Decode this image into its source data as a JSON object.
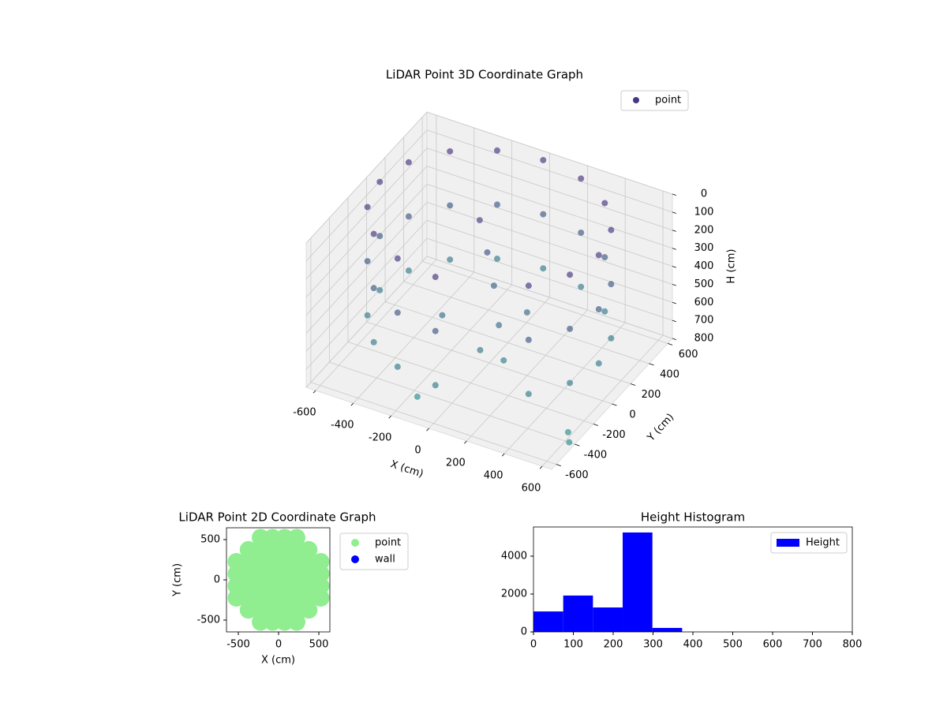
{
  "chart_data": [
    {
      "type": "scatter3d",
      "title": "LiDAR Point 3D Coordinate Graph",
      "xlabel": "X (cm)",
      "ylabel": "Y (cm)",
      "zlabel": "H (cm)",
      "xlim": [
        -650,
        650
      ],
      "ylim": [
        -650,
        650
      ],
      "zlim": [
        800,
        0
      ],
      "xticks": [
        -600,
        -400,
        -200,
        0,
        200,
        400,
        600
      ],
      "yticks": [
        -600,
        -400,
        -200,
        0,
        200,
        400,
        600
      ],
      "zticks": [
        0,
        100,
        200,
        300,
        400,
        500,
        600,
        700,
        800
      ],
      "grid": true,
      "legend": "upper right",
      "series": [
        {
          "name": "point",
          "color": "#443983",
          "colormap": [
            "#46337e",
            "#2a8f8c"
          ],
          "x": [
            580,
            580,
            580,
            536,
            536,
            536,
            410,
            410,
            410,
            222,
            222,
            222,
            0,
            0,
            0,
            -222,
            -222,
            -222,
            -410,
            -410,
            -410,
            -536,
            -536,
            -536,
            -580,
            -580,
            -580,
            -536,
            -536,
            -536,
            -410,
            -410,
            -410,
            -222,
            -222,
            -222,
            0,
            0,
            0,
            410,
            410,
            410,
            536,
            536,
            536,
            -100,
            -50,
            0,
            100,
            50,
            150,
            200,
            -200,
            -165,
            578,
            620
          ],
          "y": [
            0,
            0,
            0,
            222,
            222,
            222,
            410,
            410,
            410,
            536,
            536,
            536,
            580,
            580,
            580,
            536,
            536,
            536,
            410,
            410,
            410,
            222,
            222,
            222,
            0,
            0,
            0,
            -222,
            -222,
            -222,
            -410,
            -410,
            -410,
            -536,
            -536,
            -536,
            -580,
            -580,
            -580,
            -410,
            -410,
            -410,
            -222,
            -222,
            -222,
            100,
            80,
            50,
            -100,
            -200,
            -150,
            0,
            -100,
            -439,
            -326,
            -400
          ],
          "z": [
            0,
            300,
            600,
            0,
            300,
            600,
            0,
            300,
            600,
            0,
            300,
            600,
            0,
            300,
            600,
            0,
            300,
            600,
            0,
            300,
            600,
            0,
            300,
            600,
            0,
            300,
            600,
            0,
            300,
            600,
            0,
            300,
            600,
            0,
            300,
            600,
            0,
            300,
            600,
            0,
            300,
            600,
            0,
            300,
            600,
            100,
            250,
            400,
            500,
            600,
            650,
            450,
            550,
            800,
            800,
            800
          ]
        }
      ]
    },
    {
      "type": "scatter",
      "title": "LiDAR Point 2D Coordinate Graph",
      "xlabel": "X (cm)",
      "ylabel": "Y (cm)",
      "xlim": [
        -647,
        637
      ],
      "ylim": [
        -647,
        647
      ],
      "xticks": [
        -500,
        0,
        500
      ],
      "yticks": [
        -500,
        0,
        500
      ],
      "legend": "outside right",
      "series": [
        {
          "name": "point",
          "color": "#90ee90",
          "x": [
            -525,
            -525,
            -525,
            -525,
            -375,
            -375,
            -375,
            -375,
            -375,
            -375,
            -225,
            -225,
            -225,
            -225,
            -225,
            -225,
            -225,
            -225,
            -75,
            -75,
            -75,
            -75,
            -75,
            -75,
            -75,
            -75,
            75,
            75,
            75,
            75,
            75,
            75,
            75,
            75,
            225,
            225,
            225,
            225,
            225,
            225,
            225,
            225,
            375,
            375,
            375,
            375,
            375,
            375,
            525,
            525,
            525,
            525
          ],
          "y": [
            -225,
            -75,
            75,
            225,
            -375,
            -225,
            -75,
            75,
            225,
            375,
            -525,
            -375,
            -225,
            -75,
            75,
            225,
            375,
            525,
            -525,
            -375,
            -225,
            -75,
            75,
            225,
            375,
            525,
            -525,
            -375,
            -225,
            -75,
            75,
            225,
            375,
            525,
            -525,
            -375,
            -225,
            -75,
            75,
            225,
            375,
            525,
            -375,
            -225,
            -75,
            75,
            225,
            375,
            -225,
            -75,
            75,
            225
          ]
        },
        {
          "name": "wall",
          "color": "#0000ff",
          "x": [],
          "y": []
        }
      ]
    },
    {
      "type": "histogram",
      "title": "Height Histogram",
      "bins": [
        0,
        74.6,
        149.2,
        223.8,
        298.4,
        373,
        447.6,
        522.2,
        596.8,
        671.4,
        746
      ],
      "xlim": [
        0,
        800
      ],
      "ylim": [
        0,
        5540
      ],
      "xticks": [
        0,
        100,
        200,
        300,
        400,
        500,
        600,
        700,
        800
      ],
      "yticks": [
        0,
        2000,
        4000
      ],
      "legend": "upper right",
      "series": [
        {
          "name": "Height",
          "color": "#0000ff",
          "values": [
            1080,
            1920,
            1290,
            5250,
            210,
            0,
            0,
            0,
            0,
            0
          ]
        }
      ]
    }
  ]
}
